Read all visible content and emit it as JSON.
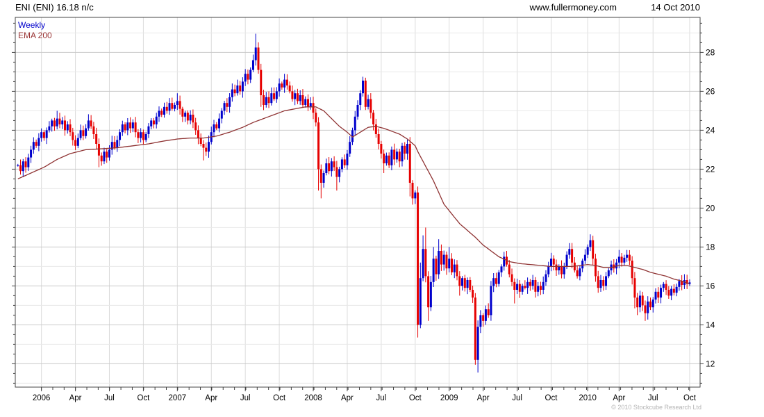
{
  "header": {
    "title": "ENI (ENI) 16.18 n/c",
    "site": "www.fullermoney.com",
    "date": "14 Oct 2010"
  },
  "legend": {
    "weekly": "Weekly",
    "ema": "EMA 200"
  },
  "footer": {
    "copyright": "© 2010 Stockcube Research Ltd"
  },
  "colors": {
    "up": "#0000cc",
    "down": "#e60000",
    "ema": "#8f3333",
    "legend_weekly": "#0000cc",
    "legend_ema": "#993333",
    "grid_minor": "#e8e8e8",
    "grid_major": "#c9c9c9",
    "grid_vertical": "#dcdcdc",
    "frame": "#444444",
    "text": "#000000",
    "copyright": "#b3b3b3"
  },
  "chart_data": {
    "type": "candlestick",
    "title": "ENI (ENI) 16.18 n/c",
    "instrument": "ENI",
    "last_price": 16.18,
    "change": "n/c",
    "interval": "Weekly",
    "overlay": "EMA 200",
    "y_axis": {
      "min": 10.8,
      "max": 29.8,
      "tick_labels": [
        12,
        14,
        16,
        18,
        20,
        22,
        24,
        26,
        28
      ],
      "minor_step": 0.5,
      "grid_step": 1,
      "label_side": "right"
    },
    "x_labels": [
      {
        "label": "2006",
        "week": 9
      },
      {
        "label": "Apr",
        "week": 22
      },
      {
        "label": "Jul",
        "week": 35
      },
      {
        "label": "Oct",
        "week": 48
      },
      {
        "label": "2007",
        "week": 61
      },
      {
        "label": "Apr",
        "week": 74
      },
      {
        "label": "Jul",
        "week": 87
      },
      {
        "label": "Oct",
        "week": 100
      },
      {
        "label": "2008",
        "week": 113
      },
      {
        "label": "Apr",
        "week": 126
      },
      {
        "label": "Jul",
        "week": 139
      },
      {
        "label": "Oct",
        "week": 152
      },
      {
        "label": "2009",
        "week": 165
      },
      {
        "label": "Apr",
        "week": 178
      },
      {
        "label": "Jul",
        "week": 191
      },
      {
        "label": "Oct",
        "week": 204
      },
      {
        "label": "2010",
        "week": 218
      },
      {
        "label": "Apr",
        "week": 230
      },
      {
        "label": "Jul",
        "week": 243
      },
      {
        "label": "Oct",
        "week": 257
      }
    ],
    "closes": [
      22.2,
      21.9,
      22.4,
      22.1,
      22.6,
      23.0,
      23.4,
      23.2,
      23.6,
      23.9,
      23.6,
      24.0,
      24.2,
      24.5,
      24.2,
      24.6,
      24.3,
      24.5,
      24.0,
      24.3,
      23.9,
      23.5,
      23.2,
      23.6,
      24.0,
      23.7,
      24.1,
      24.5,
      24.2,
      23.8,
      23.3,
      22.7,
      22.4,
      22.9,
      22.6,
      23.0,
      23.4,
      23.1,
      23.5,
      23.9,
      24.3,
      24.0,
      24.4,
      24.1,
      24.4,
      23.9,
      23.6,
      23.9,
      23.5,
      23.8,
      24.2,
      24.5,
      24.3,
      24.7,
      25.0,
      24.8,
      25.2,
      25.0,
      25.4,
      25.1,
      25.3,
      25.5,
      25.1,
      24.7,
      24.9,
      24.5,
      24.8,
      24.4,
      24.0,
      23.6,
      23.3,
      23.1,
      22.9,
      23.4,
      23.9,
      24.3,
      24.1,
      24.6,
      25.0,
      25.4,
      25.2,
      25.7,
      26.1,
      25.9,
      26.3,
      26.0,
      26.5,
      26.9,
      26.6,
      27.1,
      27.6,
      28.25,
      27.1,
      25.8,
      25.3,
      25.7,
      25.4,
      25.9,
      25.6,
      26.0,
      26.4,
      26.2,
      26.6,
      26.3,
      26.0,
      25.6,
      25.9,
      25.5,
      25.8,
      25.3,
      25.6,
      25.2,
      25.4,
      24.9,
      24.4,
      22.0,
      21.3,
      21.8,
      22.3,
      21.9,
      22.4,
      22.1,
      21.6,
      22.0,
      22.5,
      22.2,
      22.8,
      23.4,
      24.0,
      24.7,
      25.3,
      25.9,
      26.55,
      25.2,
      25.6,
      24.9,
      24.3,
      23.8,
      23.3,
      22.8,
      22.3,
      22.7,
      22.2,
      23.0,
      22.5,
      22.9,
      22.4,
      23.2,
      22.8,
      23.3,
      21.3,
      20.5,
      20.8,
      14.0,
      16.4,
      17.9,
      16.5,
      14.9,
      16.2,
      17.4,
      16.6,
      17.8,
      17.1,
      17.6,
      16.9,
      17.4,
      16.7,
      17.1,
      16.5,
      16.0,
      16.4,
      15.9,
      16.3,
      15.8,
      15.4,
      12.2,
      13.9,
      14.5,
      14.2,
      14.8,
      14.5,
      16.0,
      16.4,
      16.1,
      16.7,
      17.0,
      17.5,
      17.1,
      16.6,
      16.2,
      15.8,
      16.1,
      15.7,
      16.0,
      15.9,
      16.2,
      16.0,
      16.3,
      15.7,
      16.0,
      15.8,
      16.2,
      16.6,
      17.0,
      17.4,
      17.1,
      16.8,
      17.0,
      16.6,
      17.0,
      17.6,
      17.9,
      17.2,
      16.8,
      16.5,
      16.9,
      17.3,
      17.6,
      18.0,
      18.35,
      17.4,
      16.5,
      15.9,
      16.3,
      16.0,
      16.5,
      16.8,
      17.1,
      16.9,
      17.2,
      17.5,
      17.2,
      17.45,
      17.6,
      17.3,
      16.4,
      15.4,
      14.9,
      15.5,
      15.0,
      14.6,
      15.2,
      14.9,
      15.3,
      15.7,
      15.4,
      15.9,
      16.1,
      15.8,
      15.5,
      15.85,
      15.65,
      15.95,
      16.25,
      16.05,
      16.3,
      16.1,
      16.18
    ],
    "wick_highs": {
      "15": 25.0,
      "61": 25.9,
      "91": 28.96,
      "102": 26.9,
      "132": 26.75,
      "133": 26.7,
      "154": 17.2,
      "155": 18.6,
      "156": 19.0,
      "159": 18.0,
      "161": 18.4,
      "165": 18.0,
      "186": 17.75,
      "187": 17.8,
      "204": 17.7,
      "211": 18.2,
      "219": 18.65,
      "230": 17.85,
      "233": 17.85
    },
    "wick_lows": {
      "31": 22.1,
      "71": 22.45,
      "93": 25.2,
      "115": 20.9,
      "116": 20.5,
      "122": 20.9,
      "140": 21.8,
      "150": 20.6,
      "153": 13.35,
      "157": 14.2,
      "169": 15.5,
      "175": 11.95,
      "176": 11.55,
      "190": 15.1,
      "198": 15.4,
      "222": 15.65,
      "236": 14.85,
      "237": 14.5,
      "240": 14.2
    },
    "ema_anchors": [
      [
        0,
        21.5
      ],
      [
        5,
        21.8
      ],
      [
        10,
        22.1
      ],
      [
        15,
        22.5
      ],
      [
        20,
        22.8
      ],
      [
        26,
        23.0
      ],
      [
        32,
        23.05
      ],
      [
        38,
        23.1
      ],
      [
        44,
        23.2
      ],
      [
        50,
        23.3
      ],
      [
        56,
        23.45
      ],
      [
        61,
        23.55
      ],
      [
        66,
        23.6
      ],
      [
        71,
        23.6
      ],
      [
        76,
        23.7
      ],
      [
        81,
        23.9
      ],
      [
        86,
        24.15
      ],
      [
        90,
        24.4
      ],
      [
        94,
        24.6
      ],
      [
        98,
        24.8
      ],
      [
        102,
        25.0
      ],
      [
        106,
        25.1
      ],
      [
        110,
        25.2
      ],
      [
        114,
        25.2
      ],
      [
        117,
        25.0
      ],
      [
        120,
        24.6
      ],
      [
        123,
        24.2
      ],
      [
        126,
        23.9
      ],
      [
        128,
        23.65
      ],
      [
        131,
        23.9
      ],
      [
        134,
        24.15
      ],
      [
        137,
        24.2
      ],
      [
        140,
        24.1
      ],
      [
        143,
        23.95
      ],
      [
        146,
        23.8
      ],
      [
        149,
        23.55
      ],
      [
        152,
        23.2
      ],
      [
        153,
        22.9
      ],
      [
        155,
        22.4
      ],
      [
        157,
        21.9
      ],
      [
        159,
        21.4
      ],
      [
        161,
        20.8
      ],
      [
        163,
        20.2
      ],
      [
        166,
        19.7
      ],
      [
        169,
        19.2
      ],
      [
        172,
        18.85
      ],
      [
        175,
        18.5
      ],
      [
        178,
        18.1
      ],
      [
        181,
        17.8
      ],
      [
        184,
        17.5
      ],
      [
        188,
        17.25
      ],
      [
        192,
        17.15
      ],
      [
        196,
        17.1
      ],
      [
        200,
        17.05
      ],
      [
        204,
        17.0
      ],
      [
        208,
        17.0
      ],
      [
        212,
        17.0
      ],
      [
        215,
        17.05
      ],
      [
        218,
        17.1
      ],
      [
        221,
        17.05
      ],
      [
        224,
        16.95
      ],
      [
        227,
        16.95
      ],
      [
        230,
        17.05
      ],
      [
        233,
        17.05
      ],
      [
        236,
        16.95
      ],
      [
        239,
        16.85
      ],
      [
        242,
        16.7
      ],
      [
        245,
        16.6
      ],
      [
        248,
        16.5
      ],
      [
        251,
        16.35
      ],
      [
        254,
        16.25
      ],
      [
        257,
        16.1
      ]
    ]
  }
}
